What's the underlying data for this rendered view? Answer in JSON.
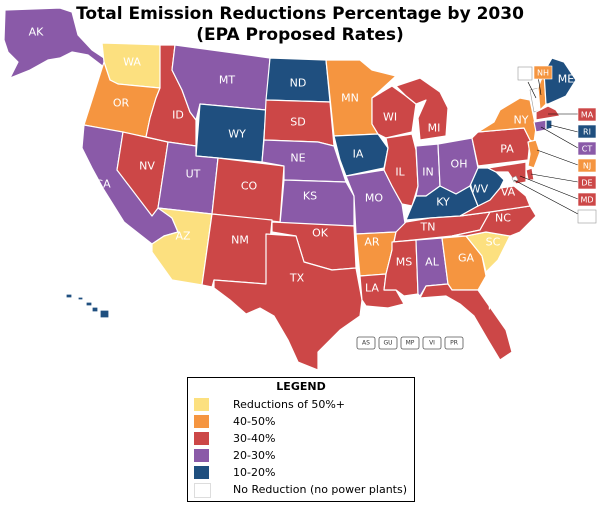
{
  "title_line1": "Total Emission Reductions Percentage by 2030",
  "title_line2": "(EPA Proposed Rates)",
  "colors": {
    "50plus": "#fce07f",
    "40-50": "#f59540",
    "30-40": "#cc4747",
    "20-30": "#8a5aa8",
    "10-20": "#1f4f7f",
    "none": "#ffffff"
  },
  "states": [
    {
      "code": "AK",
      "category": "20-30"
    },
    {
      "code": "WA",
      "category": "50plus"
    },
    {
      "code": "OR",
      "category": "40-50"
    },
    {
      "code": "CA",
      "category": "20-30"
    },
    {
      "code": "NV",
      "category": "30-40"
    },
    {
      "code": "ID",
      "category": "30-40"
    },
    {
      "code": "MT",
      "category": "20-30"
    },
    {
      "code": "WY",
      "category": "10-20"
    },
    {
      "code": "UT",
      "category": "20-30"
    },
    {
      "code": "AZ",
      "category": "50plus"
    },
    {
      "code": "CO",
      "category": "30-40"
    },
    {
      "code": "NM",
      "category": "30-40"
    },
    {
      "code": "ND",
      "category": "10-20"
    },
    {
      "code": "SD",
      "category": "30-40"
    },
    {
      "code": "NE",
      "category": "20-30"
    },
    {
      "code": "KS",
      "category": "20-30"
    },
    {
      "code": "OK",
      "category": "30-40"
    },
    {
      "code": "TX",
      "category": "30-40"
    },
    {
      "code": "MN",
      "category": "40-50"
    },
    {
      "code": "IA",
      "category": "10-20"
    },
    {
      "code": "MO",
      "category": "20-30"
    },
    {
      "code": "AR",
      "category": "40-50"
    },
    {
      "code": "LA",
      "category": "30-40"
    },
    {
      "code": "WI",
      "category": "30-40"
    },
    {
      "code": "IL",
      "category": "30-40"
    },
    {
      "code": "MI",
      "category": "30-40"
    },
    {
      "code": "IN",
      "category": "20-30"
    },
    {
      "code": "OH",
      "category": "20-30"
    },
    {
      "code": "KY",
      "category": "10-20"
    },
    {
      "code": "TN",
      "category": "30-40"
    },
    {
      "code": "MS",
      "category": "30-40"
    },
    {
      "code": "AL",
      "category": "20-30"
    },
    {
      "code": "GA",
      "category": "40-50"
    },
    {
      "code": "FL",
      "category": "30-40"
    },
    {
      "code": "SC",
      "category": "50plus"
    },
    {
      "code": "NC",
      "category": "30-40"
    },
    {
      "code": "VA",
      "category": "30-40"
    },
    {
      "code": "WV",
      "category": "10-20"
    },
    {
      "code": "PA",
      "category": "30-40"
    },
    {
      "code": "NY",
      "category": "40-50"
    },
    {
      "code": "VT",
      "category": "none"
    },
    {
      "code": "NH",
      "category": "40-50"
    },
    {
      "code": "ME",
      "category": "10-20"
    },
    {
      "code": "MA",
      "category": "30-40"
    },
    {
      "code": "RI",
      "category": "10-20"
    },
    {
      "code": "CT",
      "category": "20-30"
    },
    {
      "code": "NJ",
      "category": "40-50"
    },
    {
      "code": "DE",
      "category": "30-40"
    },
    {
      "code": "MD",
      "category": "30-40"
    },
    {
      "code": "DC",
      "category": "none"
    },
    {
      "code": "HI",
      "category": "10-20"
    }
  ],
  "territories": [
    "AS",
    "GU",
    "MP",
    "VI",
    "PR"
  ],
  "legend": {
    "title": "LEGEND",
    "items": [
      {
        "label": "Reductions of 50%+",
        "category": "50plus"
      },
      {
        "label": "40-50%",
        "category": "40-50"
      },
      {
        "label": "30-40%",
        "category": "30-40"
      },
      {
        "label": "20-30%",
        "category": "20-30"
      },
      {
        "label": "10-20%",
        "category": "10-20"
      },
      {
        "label": "No Reduction (no power plants)",
        "category": "none"
      }
    ]
  }
}
